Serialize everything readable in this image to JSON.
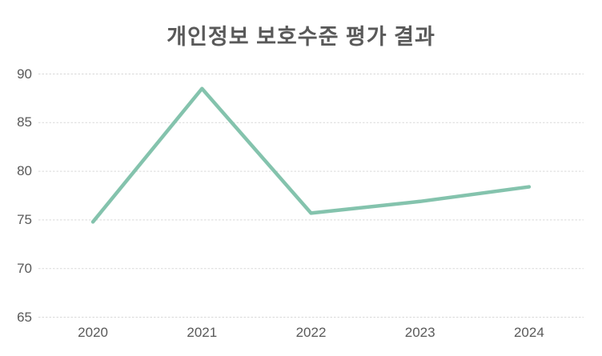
{
  "chart_data": {
    "type": "line",
    "title": "개인정보 보호수준 평가 결과",
    "categories": [
      "2020",
      "2021",
      "2022",
      "2023",
      "2024"
    ],
    "values": [
      74.8,
      88.5,
      75.7,
      76.9,
      78.4
    ],
    "yticks": [
      90,
      85,
      80,
      75,
      70,
      65
    ],
    "ylim": [
      65,
      90
    ],
    "xlabel": "",
    "ylabel": "",
    "grid": true,
    "gridline_style": "dashed",
    "legend": false,
    "markers": false,
    "colors": {
      "line": "#84c3ad",
      "gridline": "#d9d9d9",
      "tick_text": "#595959",
      "title_text": "#595959",
      "background": "#ffffff"
    }
  }
}
